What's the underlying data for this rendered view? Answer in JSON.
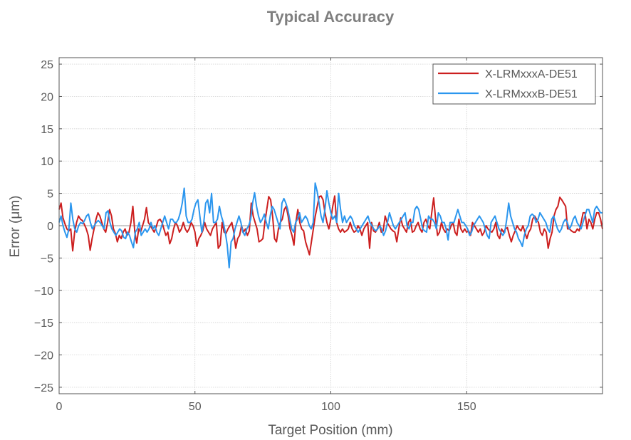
{
  "chart_data": {
    "type": "line",
    "title": "Typical Accuracy",
    "xlabel": "Target Position (mm)",
    "ylabel": "Error (μm)",
    "xlim": [
      0,
      200
    ],
    "ylim": [
      -26,
      26
    ],
    "xticks": [
      0,
      50,
      100,
      150
    ],
    "yticks": [
      -25,
      -20,
      -15,
      -10,
      -5,
      0,
      5,
      10,
      15,
      20,
      25
    ],
    "grid": true,
    "legend_position": "top-right",
    "series": [
      {
        "name": "X-LRMxxxA-DE51",
        "color": "#cc1f1f",
        "values": [
          2.5,
          3.5,
          1.2,
          0.3,
          -0.5,
          -0.8,
          -0.5,
          -3.9,
          -1.0,
          0.5,
          1.5,
          1.0,
          0.8,
          0.2,
          -0.5,
          -1.5,
          -3.8,
          -2.0,
          -0.5,
          1.0,
          2.0,
          1.5,
          0.5,
          -0.5,
          -1.0,
          0.5,
          2.5,
          1.5,
          -0.5,
          -1.2,
          -2.5,
          -1.5,
          -2.0,
          -1.0,
          -0.5,
          -1.5,
          -1.0,
          0.5,
          3.0,
          -1.0,
          -2.7,
          -0.5,
          -1.0,
          0.0,
          1.0,
          2.8,
          0.5,
          0.0,
          -0.5,
          -1.0,
          -0.2,
          0.8,
          1.0,
          0.5,
          -0.5,
          -1.5,
          -1.0,
          -2.8,
          -2.0,
          -0.5,
          0.5,
          0.0,
          -1.0,
          -0.5,
          0.5,
          -0.5,
          -1.0,
          -0.5,
          0.5,
          0.0,
          -1.0,
          -3.2,
          -2.0,
          -1.5,
          -0.8,
          0.5,
          -0.5,
          -1.0,
          -1.5,
          -0.5,
          0.0,
          0.5,
          -3.5,
          -3.0,
          0.5,
          -1.0,
          -1.2,
          -0.5,
          0.0,
          0.5,
          -1.0,
          -3.5,
          -2.0,
          -1.5,
          0.0,
          -1.0,
          -0.5,
          -1.5,
          -0.8,
          3.5,
          1.5,
          0.5,
          -0.5,
          -2.5,
          -2.3,
          -2.0,
          0.5,
          2.5,
          4.5,
          4.0,
          1.5,
          -2.0,
          -2.5,
          -0.5,
          0.5,
          1.0,
          2.5,
          3.0,
          1.5,
          -0.5,
          -1.5,
          -3.0,
          0.5,
          2.5,
          0.5,
          -0.5,
          -0.8,
          -2.5,
          -3.5,
          -4.5,
          -2.5,
          -0.5,
          1.5,
          3.0,
          4.5,
          4.6,
          4.0,
          2.0,
          0.5,
          -0.5,
          1.0,
          3.0,
          4.6,
          0.5,
          -0.5,
          -1.0,
          -0.5,
          -1.0,
          -0.8,
          -0.5,
          0.5,
          -0.5,
          -1.0,
          -0.8,
          0.0,
          -0.5,
          -1.5,
          -0.5,
          0.0,
          0.5,
          -3.5,
          0.5,
          -0.8,
          -1.0,
          -0.5,
          0.5,
          -1.0,
          -0.8,
          1.5,
          0.5,
          0.0,
          -0.5,
          -0.8,
          -1.0,
          -2.5,
          -0.5,
          1.2,
          0.0,
          -0.5,
          -1.0,
          0.5,
          1.0,
          -1.0,
          -0.8,
          0.0,
          0.5,
          -0.5,
          -1.0,
          0.5,
          1.0,
          0.0,
          -0.5,
          2.0,
          4.3,
          1.0,
          -1.5,
          -1.0,
          0.5,
          -0.5,
          -1.0,
          -0.5,
          -0.8,
          0.0,
          0.5,
          -1.0,
          -1.5,
          1.0,
          -0.5,
          -1.0,
          -0.5,
          -1.0,
          -0.8,
          -1.5,
          0.5,
          0.0,
          -0.5,
          -1.0,
          -0.5,
          -1.5,
          -1.0,
          0.0,
          -0.5,
          -0.8,
          -1.0,
          -0.5,
          0.5,
          -1.5,
          -2.0,
          -0.5,
          -1.0,
          -0.5,
          -0.3,
          -1.5,
          -2.5,
          -1.5,
          -0.8,
          0.0,
          -0.5,
          -0.8,
          0.0,
          -1.0,
          -2.0,
          -1.0,
          -0.5,
          1.0,
          1.5,
          1.0,
          0.5,
          -1.0,
          -1.5,
          -0.5,
          -1.0,
          -3.5,
          -2.0,
          -1.0,
          1.5,
          2.5,
          3.0,
          4.4,
          4.0,
          3.5,
          3.0,
          -0.5,
          -0.5,
          -0.8,
          -1.0,
          -1.0,
          -0.5,
          -0.8,
          0.5,
          2.0,
          2.0,
          -0.5,
          1.0,
          0.5,
          -0.5,
          1.0,
          2.0,
          2.0,
          1.0,
          -0.5
        ]
      },
      {
        "name": "X-LRMxxxB-DE51",
        "color": "#2b96ee",
        "values": [
          0.5,
          1.5,
          0.0,
          -1.0,
          -1.8,
          -0.5,
          3.5,
          1.0,
          -0.5,
          -1.0,
          0.0,
          0.5,
          0.3,
          0.8,
          1.5,
          1.8,
          0.5,
          -0.5,
          0.0,
          0.5,
          0.8,
          0.5,
          0.0,
          -0.5,
          2.0,
          2.3,
          0.5,
          -0.5,
          -1.0,
          -1.5,
          -1.0,
          -0.5,
          -0.8,
          -1.8,
          -2.0,
          -1.0,
          -1.5,
          -2.5,
          -3.4,
          -1.0,
          -0.5,
          0.5,
          -1.5,
          -1.0,
          -0.5,
          -1.0,
          -0.5,
          0.5,
          -0.5,
          0.0,
          -1.0,
          -1.5,
          -0.5,
          0.5,
          1.5,
          0.5,
          -0.5,
          1.0,
          1.0,
          0.5,
          0.5,
          1.0,
          2.0,
          3.5,
          5.8,
          1.5,
          0.5,
          0.5,
          1.0,
          2.5,
          3.5,
          4.0,
          1.5,
          -1.0,
          0.5,
          3.5,
          4.0,
          2.0,
          5.0,
          0.5,
          0.5,
          1.0,
          3.0,
          1.5,
          0.5,
          -1.0,
          -3.0,
          -6.5,
          -2.5,
          -2.0,
          -0.5,
          0.5,
          1.5,
          0.5,
          -1.0,
          -1.5,
          -0.5,
          0.0,
          1.0,
          3.5,
          5.1,
          3.0,
          1.5,
          0.5,
          1.0,
          1.8,
          0.5,
          -0.5,
          1.5,
          3.0,
          2.5,
          1.5,
          0.5,
          -0.5,
          3.5,
          4.2,
          3.5,
          2.5,
          1.0,
          -0.5,
          -1.0,
          0.5,
          1.0,
          2.0,
          0.5,
          1.0,
          1.5,
          1.0,
          0.0,
          -0.5,
          0.5,
          6.6,
          5.3,
          3.5,
          1.5,
          0.5,
          2.5,
          5.4,
          3.5,
          2.0,
          1.0,
          1.5,
          0.5,
          5.0,
          2.5,
          0.5,
          1.5,
          0.5,
          1.0,
          1.5,
          1.0,
          0.0,
          -0.5,
          -1.0,
          -0.5,
          0.0,
          0.5,
          1.0,
          1.5,
          0.5,
          0.0,
          -0.5,
          -0.8,
          -0.5,
          0.0,
          -0.5,
          -1.5,
          -0.8,
          0.5,
          2.0,
          1.0,
          0.0,
          -0.5,
          0.0,
          0.5,
          1.0,
          1.5,
          2.0,
          0.0,
          -0.5,
          0.5,
          0.5,
          2.5,
          3.0,
          2.5,
          1.0,
          -0.5,
          -0.8,
          -1.0,
          1.5,
          1.0,
          1.0,
          0.5,
          -0.5,
          2.0,
          1.5,
          0.5,
          0.5,
          -0.5,
          -2.2,
          0.5,
          0.5,
          0.5,
          1.5,
          2.5,
          1.5,
          0.5,
          0.5,
          0.0,
          -0.5,
          -1.5,
          -1.0,
          0.0,
          0.5,
          1.0,
          1.5,
          1.0,
          0.5,
          -0.5,
          -1.5,
          -2.0,
          0.5,
          1.0,
          1.5,
          0.5,
          -0.5,
          -1.0,
          -1.5,
          -1.0,
          1.0,
          3.5,
          1.5,
          0.5,
          -0.5,
          -1.0,
          -2.0,
          -2.5,
          -3.2,
          -1.5,
          -0.5,
          0.0,
          1.5,
          1.8,
          1.5,
          0.5,
          1.0,
          2.0,
          1.5,
          1.0,
          0.5,
          -0.5,
          -1.0,
          1.0,
          1.5,
          0.5,
          -0.5,
          -1.0,
          -0.5,
          0.5,
          1.0,
          0.5,
          -0.5,
          0.0,
          1.0,
          1.5,
          0.5,
          0.0,
          -0.5,
          0.5,
          1.5,
          2.5,
          2.5,
          1.5,
          0.5,
          2.5,
          3.0,
          2.5,
          2.0,
          2.0
        ]
      }
    ]
  }
}
